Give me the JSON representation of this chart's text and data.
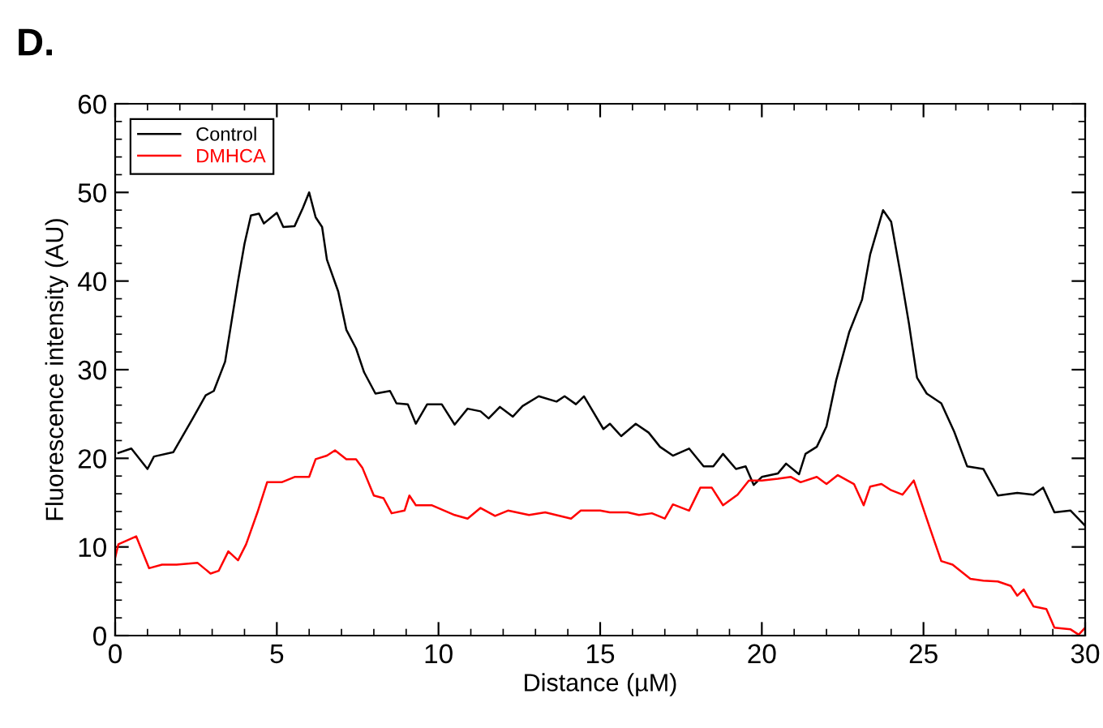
{
  "chart_data": {
    "type": "line",
    "title": "D.",
    "xlabel": "Distance (µM)",
    "ylabel": "Fluorescence intensity (AU)",
    "xlim": [
      0,
      30
    ],
    "xticks": [
      0,
      5,
      10,
      15,
      20,
      25,
      30
    ],
    "ylim": [
      0,
      60
    ],
    "yticks": [
      0,
      10,
      20,
      30,
      40,
      50,
      60
    ],
    "grid": false,
    "legend": "top left",
    "marker": "none",
    "line_style": "solid",
    "series": [
      {
        "name": "Control",
        "color": "#000000",
        "x": [
          0.1,
          0.5,
          1.0,
          1.2,
          1.8,
          2.4,
          2.8,
          3.05,
          3.4,
          3.8,
          4.0,
          4.2,
          4.45,
          4.6,
          5.0,
          5.2,
          5.55,
          5.8,
          6.0,
          6.2,
          6.4,
          6.55,
          6.9,
          7.15,
          7.45,
          7.7,
          8.05,
          8.5,
          8.7,
          9.05,
          9.3,
          9.65,
          10.1,
          10.5,
          10.9,
          11.3,
          11.55,
          11.9,
          12.3,
          12.6,
          13.1,
          13.65,
          13.9,
          14.25,
          14.5,
          15.1,
          15.3,
          15.65,
          16.1,
          16.5,
          16.85,
          17.25,
          17.75,
          18.2,
          18.5,
          18.8,
          19.2,
          19.5,
          19.75,
          20.0,
          20.5,
          20.75,
          21.15,
          21.35,
          21.7,
          22.0,
          22.3,
          22.7,
          23.1,
          23.35,
          23.75,
          24.0,
          24.3,
          24.55,
          24.8,
          25.1,
          25.55,
          25.95,
          26.35,
          26.85,
          27.3,
          27.9,
          28.4,
          28.7,
          29.05,
          29.55,
          30.0
        ],
        "values": [
          20.6,
          21.1,
          18.8,
          20.2,
          20.7,
          24.5,
          27.1,
          27.6,
          30.9,
          40,
          44.2,
          47.4,
          47.6,
          46.5,
          47.7,
          46.1,
          46.2,
          48.2,
          50,
          47.2,
          46.1,
          42.4,
          38.8,
          34.5,
          32.4,
          29.7,
          27.3,
          27.6,
          26.2,
          26.1,
          23.9,
          26.1,
          26.1,
          23.8,
          25.6,
          25.3,
          24.5,
          25.8,
          24.7,
          25.9,
          27.0,
          26.4,
          27.0,
          26.1,
          27.0,
          23.3,
          23.9,
          22.5,
          23.9,
          22.9,
          21.3,
          20.3,
          21.1,
          19.1,
          19.1,
          20.5,
          18.8,
          19.1,
          17.0,
          17.9,
          18.3,
          19.4,
          18.2,
          20.5,
          21.3,
          23.6,
          28.8,
          34.2,
          37.9,
          43.0,
          48.0,
          46.7,
          40.6,
          35.2,
          29.1,
          27.3,
          26.2,
          23.0,
          19.1,
          18.8,
          15.8,
          16.1,
          15.9,
          16.7,
          13.9,
          14.1,
          12.4
        ]
      },
      {
        "name": "DMHCA",
        "color": "#ff0000",
        "x": [
          0.0,
          0.1,
          0.65,
          1.05,
          1.45,
          1.9,
          2.55,
          2.95,
          3.2,
          3.5,
          3.8,
          4.05,
          4.4,
          4.7,
          5.15,
          5.55,
          6.0,
          6.2,
          6.55,
          6.8,
          7.15,
          7.45,
          7.65,
          8.0,
          8.3,
          8.55,
          8.95,
          9.1,
          9.3,
          9.8,
          10.5,
          10.9,
          11.3,
          11.75,
          12.15,
          12.8,
          13.3,
          14.1,
          14.4,
          15.0,
          15.3,
          15.85,
          16.2,
          16.6,
          17.0,
          17.25,
          17.75,
          18.1,
          18.45,
          18.8,
          19.25,
          19.6,
          20.0,
          20.5,
          20.9,
          21.2,
          21.7,
          22.0,
          22.35,
          22.85,
          23.15,
          23.35,
          23.7,
          24.0,
          24.35,
          24.7,
          24.95,
          25.2,
          25.55,
          25.9,
          26.45,
          26.85,
          27.3,
          27.7,
          27.9,
          28.1,
          28.4,
          28.8,
          29.05,
          29.55,
          29.8,
          30.0
        ],
        "values": [
          8.8,
          10.3,
          11.2,
          7.6,
          8.0,
          8.0,
          8.2,
          7.0,
          7.3,
          9.5,
          8.5,
          10.3,
          13.9,
          17.3,
          17.3,
          17.9,
          17.9,
          19.9,
          20.3,
          20.9,
          19.9,
          19.9,
          18.9,
          15.8,
          15.5,
          13.8,
          14.1,
          15.8,
          14.7,
          14.7,
          13.6,
          13.2,
          14.4,
          13.5,
          14.1,
          13.6,
          13.9,
          13.2,
          14.1,
          14.1,
          13.9,
          13.9,
          13.6,
          13.8,
          13.2,
          14.8,
          14.1,
          16.7,
          16.7,
          14.7,
          15.9,
          17.5,
          17.5,
          17.7,
          17.9,
          17.3,
          17.9,
          17.1,
          18.1,
          17.1,
          14.7,
          16.8,
          17.1,
          16.4,
          15.9,
          17.5,
          14.8,
          12.1,
          8.4,
          8.0,
          6.4,
          6.2,
          6.1,
          5.6,
          4.5,
          5.2,
          3.3,
          3.0,
          0.9,
          0.7,
          0.1,
          0.9
        ]
      }
    ]
  }
}
